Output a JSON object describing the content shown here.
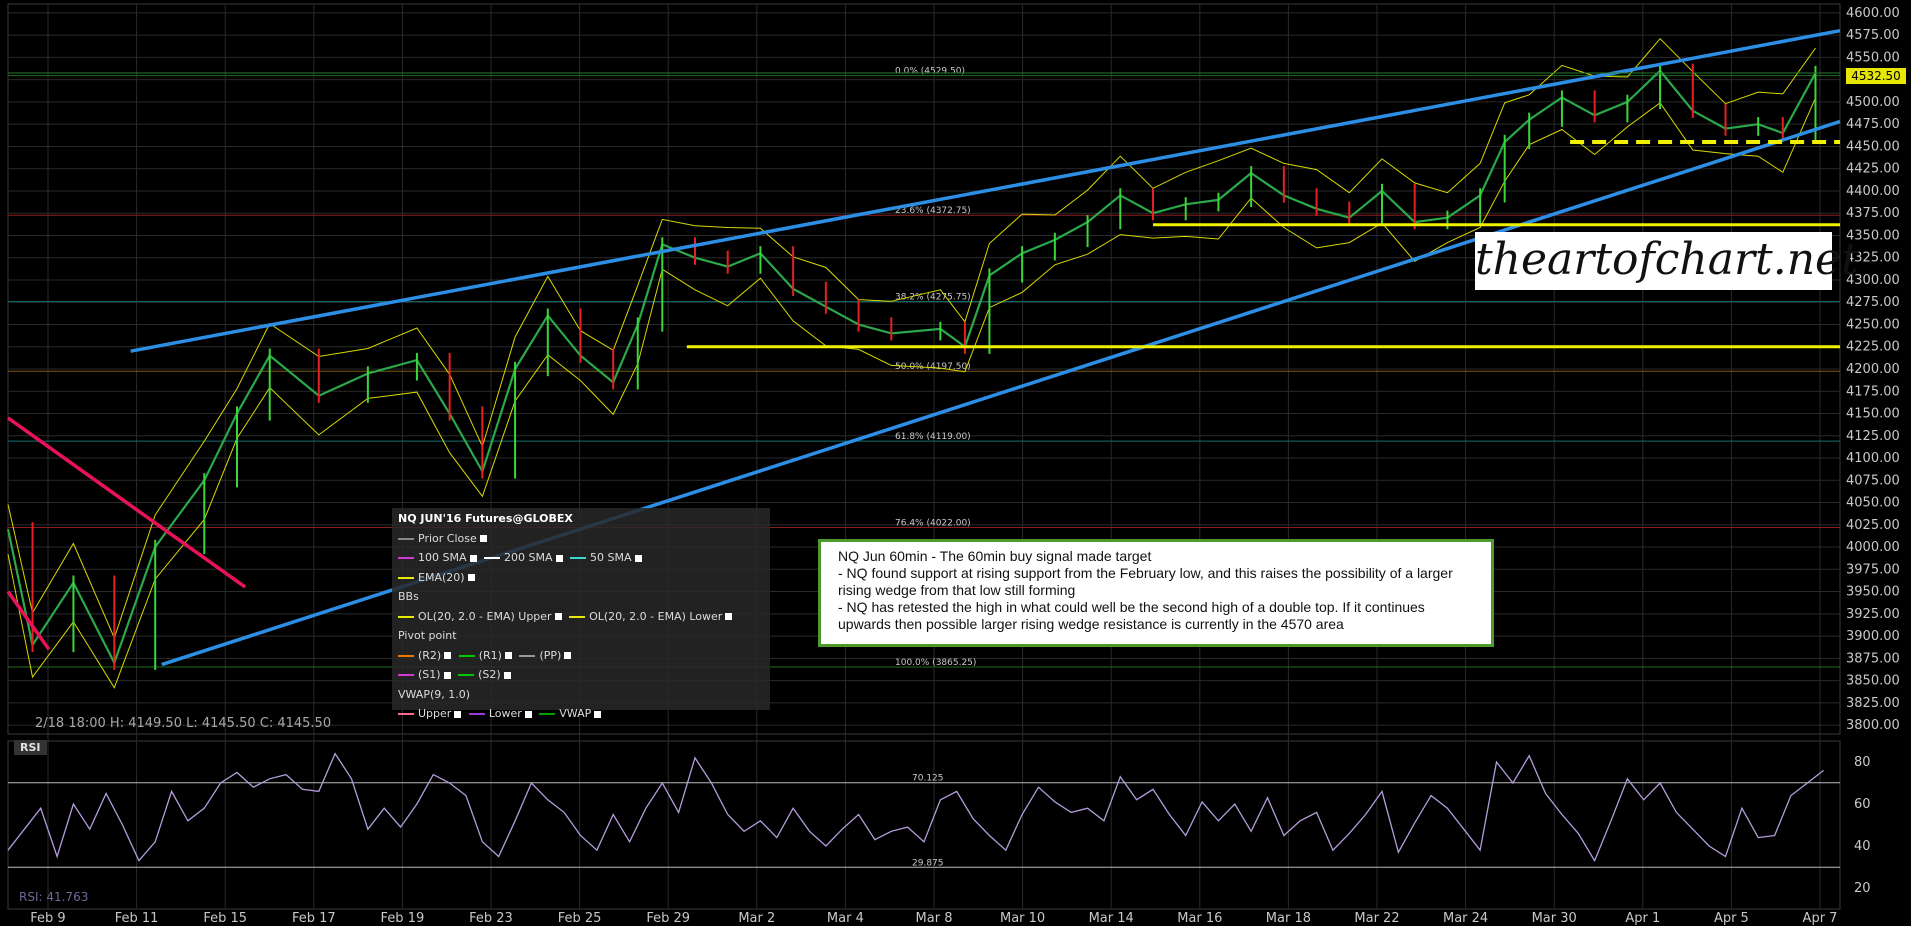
{
  "chart_data": [
    {
      "type": "line",
      "instrument": "NQ JUN'16 Futures@GLOBEX",
      "interval": "60min",
      "y_ticks": [
        4600,
        4575,
        4550,
        4525,
        4500,
        4475,
        4450,
        4425,
        4400,
        4375,
        4350,
        4325,
        4300,
        4275,
        4250,
        4225,
        4200,
        4175,
        4150,
        4125,
        4100,
        4075,
        4050,
        4025,
        4000,
        3975,
        3950,
        3925,
        3900,
        3875,
        3850,
        3825,
        3800
      ],
      "ylim": [
        3790,
        4610
      ],
      "x_ticks": [
        "Feb 9",
        "Feb 11",
        "Feb 15",
        "Feb 17",
        "Feb 19",
        "Feb 23",
        "Feb 25",
        "Feb 29",
        "Mar 2",
        "Mar 4",
        "Mar 8",
        "Mar 10",
        "Mar 14",
        "Mar 16",
        "Mar 18",
        "Mar 22",
        "Mar 24",
        "Mar 30",
        "Apr 1",
        "Apr 5",
        "Apr 7"
      ],
      "last_price": "4532.50",
      "price_path": [
        [
          0,
          4020
        ],
        [
          1.5,
          3890
        ],
        [
          4,
          3960
        ],
        [
          6.5,
          3870
        ],
        [
          9,
          4000
        ],
        [
          12,
          4075
        ],
        [
          14,
          4150
        ],
        [
          16,
          4215
        ],
        [
          19,
          4170
        ],
        [
          22,
          4195
        ],
        [
          25,
          4210
        ],
        [
          27,
          4150
        ],
        [
          29,
          4085
        ],
        [
          31,
          4200
        ],
        [
          33,
          4260
        ],
        [
          35,
          4215
        ],
        [
          37,
          4185
        ],
        [
          38.5,
          4250
        ],
        [
          40,
          4340
        ],
        [
          42,
          4325
        ],
        [
          44,
          4315
        ],
        [
          46,
          4330
        ],
        [
          48,
          4290
        ],
        [
          50,
          4270
        ],
        [
          52,
          4250
        ],
        [
          54,
          4240
        ],
        [
          57,
          4245
        ],
        [
          58.5,
          4225
        ],
        [
          60,
          4305
        ],
        [
          62,
          4330
        ],
        [
          64,
          4345
        ],
        [
          66,
          4365
        ],
        [
          68,
          4395
        ],
        [
          70,
          4375
        ],
        [
          72,
          4385
        ],
        [
          74,
          4390
        ],
        [
          76,
          4420
        ],
        [
          78,
          4395
        ],
        [
          80,
          4380
        ],
        [
          82,
          4370
        ],
        [
          84,
          4400
        ],
        [
          86,
          4365
        ],
        [
          88,
          4370
        ],
        [
          90,
          4395
        ],
        [
          91.5,
          4455
        ],
        [
          93,
          4480
        ],
        [
          95,
          4505
        ],
        [
          97,
          4485
        ],
        [
          99,
          4500
        ],
        [
          101,
          4535
        ],
        [
          103,
          4490
        ],
        [
          105,
          4470
        ],
        [
          107,
          4475
        ],
        [
          108.5,
          4465
        ],
        [
          110.5,
          4532.5
        ]
      ],
      "fib_levels": [
        {
          "label": "0.0% (4529.50)",
          "value": 4529.5,
          "color": "#1e6e1e"
        },
        {
          "label": "23.6% (4372.75)",
          "value": 4372.75,
          "color": "#8a1e1e"
        },
        {
          "label": "38.2% (4275.75)",
          "value": 4275.75,
          "color": "#127070"
        },
        {
          "label": "50.0% (4197.50)",
          "value": 4197.5,
          "color": "#7a5a14"
        },
        {
          "label": "61.8% (4119.00)",
          "value": 4119.0,
          "color": "#127070"
        },
        {
          "label": "76.4% (4022.00)",
          "value": 4022.0,
          "color": "#8a1e1e"
        },
        {
          "label": "100.0% (3865.25)",
          "value": 3865.25,
          "color": "#1e6e1e"
        }
      ],
      "trendlines": [
        {
          "kind": "wedge-resistance",
          "color": "#2d8ee6",
          "from": [
            7.5,
            4220
          ],
          "to": [
            112,
            4580
          ]
        },
        {
          "kind": "wedge-support",
          "color": "#2d8ee6",
          "from": [
            9.4,
            3868
          ],
          "to": [
            112,
            4478
          ]
        },
        {
          "kind": "downtrend",
          "color": "#e8125a",
          "from": [
            0,
            4145
          ],
          "to": [
            14.5,
            3955
          ]
        },
        {
          "kind": "downtrend",
          "color": "#e8125a",
          "from": [
            0,
            3950
          ],
          "to": [
            2.5,
            3885
          ]
        },
        {
          "kind": "support",
          "color": "#f0f000",
          "from": [
            41.5,
            4225
          ],
          "to": [
            112,
            4225
          ]
        },
        {
          "kind": "support",
          "color": "#f0f000",
          "from": [
            70,
            4362
          ],
          "to": [
            112,
            4362
          ]
        },
        {
          "kind": "support-dashed",
          "color": "#f0f000",
          "from": [
            95.5,
            4455
          ],
          "to": [
            112,
            4455
          ]
        }
      ]
    },
    {
      "type": "line",
      "indicator": "RSI",
      "value_label": "RSI: 41.763",
      "y_ticks": [
        80,
        60,
        40,
        20
      ],
      "ylim": [
        10,
        90
      ],
      "levels": [
        {
          "label": "70.125",
          "value": 70.125
        },
        {
          "label": "29.875",
          "value": 29.875
        }
      ],
      "series": [
        [
          0,
          38
        ],
        [
          2,
          58
        ],
        [
          3,
          35
        ],
        [
          4,
          60
        ],
        [
          5,
          48
        ],
        [
          6,
          65
        ],
        [
          7,
          50
        ],
        [
          8,
          33
        ],
        [
          9,
          42
        ],
        [
          10,
          66
        ],
        [
          11,
          52
        ],
        [
          12,
          58
        ],
        [
          13,
          70
        ],
        [
          14,
          75
        ],
        [
          15,
          68
        ],
        [
          16,
          72
        ],
        [
          17,
          74
        ],
        [
          18,
          67
        ],
        [
          19,
          66
        ],
        [
          20,
          84
        ],
        [
          21,
          72
        ],
        [
          22,
          48
        ],
        [
          23,
          58
        ],
        [
          24,
          49
        ],
        [
          25,
          60
        ],
        [
          26,
          74
        ],
        [
          27,
          70
        ],
        [
          28,
          64
        ],
        [
          29,
          42
        ],
        [
          30,
          35
        ],
        [
          31,
          52
        ],
        [
          32,
          70
        ],
        [
          33,
          62
        ],
        [
          34,
          56
        ],
        [
          35,
          45
        ],
        [
          36,
          38
        ],
        [
          37,
          55
        ],
        [
          38,
          42
        ],
        [
          39,
          58
        ],
        [
          40,
          70
        ],
        [
          41,
          56
        ],
        [
          42,
          82
        ],
        [
          43,
          70
        ],
        [
          44,
          55
        ],
        [
          45,
          47
        ],
        [
          46,
          52
        ],
        [
          47,
          44
        ],
        [
          48,
          58
        ],
        [
          49,
          47
        ],
        [
          50,
          40
        ],
        [
          51,
          48
        ],
        [
          52,
          55
        ],
        [
          53,
          43
        ],
        [
          54,
          47
        ],
        [
          55,
          49
        ],
        [
          56,
          42
        ],
        [
          57,
          62
        ],
        [
          58,
          66
        ],
        [
          59,
          53
        ],
        [
          60,
          45
        ],
        [
          61,
          38
        ],
        [
          62,
          55
        ],
        [
          63,
          68
        ],
        [
          64,
          61
        ],
        [
          65,
          56
        ],
        [
          66,
          58
        ],
        [
          67,
          52
        ],
        [
          68,
          73
        ],
        [
          69,
          62
        ],
        [
          70,
          67
        ],
        [
          71,
          55
        ],
        [
          72,
          45
        ],
        [
          73,
          61
        ],
        [
          74,
          52
        ],
        [
          75,
          60
        ],
        [
          76,
          47
        ],
        [
          77,
          63
        ],
        [
          78,
          45
        ],
        [
          79,
          52
        ],
        [
          80,
          56
        ],
        [
          81,
          38
        ],
        [
          82,
          46
        ],
        [
          83,
          55
        ],
        [
          84,
          66
        ],
        [
          85,
          37
        ],
        [
          86,
          51
        ],
        [
          87,
          64
        ],
        [
          88,
          58
        ],
        [
          89,
          48
        ],
        [
          90,
          38
        ],
        [
          91,
          80
        ],
        [
          92,
          70
        ],
        [
          93,
          83
        ],
        [
          94,
          65
        ],
        [
          95,
          55
        ],
        [
          96,
          46
        ],
        [
          97,
          33
        ],
        [
          98,
          52
        ],
        [
          99,
          72
        ],
        [
          100,
          62
        ],
        [
          101,
          70
        ],
        [
          102,
          56
        ],
        [
          103,
          48
        ],
        [
          104,
          40
        ],
        [
          105,
          35
        ],
        [
          106,
          58
        ],
        [
          107,
          44
        ],
        [
          108,
          45
        ],
        [
          109,
          64
        ],
        [
          110,
          70
        ],
        [
          111,
          76
        ]
      ]
    }
  ],
  "legend": {
    "title": "NQ JUN'16 Futures@GLOBEX",
    "items": [
      {
        "label": "Prior Close",
        "color": "#888888"
      },
      {
        "label": "100 SMA",
        "color": "#d63ad6"
      },
      {
        "label": "200 SMA",
        "color": "#ffffff"
      },
      {
        "label": "50 SMA",
        "color": "#3ad6d6"
      },
      {
        "label": "EMA(20)",
        "color": "#e8e800"
      },
      {
        "label": "BBs",
        "color": ""
      },
      {
        "label": "OL(20, 2.0 - EMA) Upper",
        "color": "#e8e800"
      },
      {
        "label": "OL(20, 2.0 - EMA) Lower",
        "color": "#e8e800"
      },
      {
        "label": "Pivot point",
        "color": ""
      },
      {
        "label": "(R2)",
        "color": "#e87a00"
      },
      {
        "label": "(R1)",
        "color": "#00c800"
      },
      {
        "label": "(PP)",
        "color": "#999999"
      },
      {
        "label": "(S1)",
        "color": "#d63ad6"
      },
      {
        "label": "(S2)",
        "color": "#00c800"
      },
      {
        "label": "VWAP(9, 1.0)",
        "color": ""
      },
      {
        "label": "Upper",
        "color": "#ff6a8a"
      },
      {
        "label": "Lower",
        "color": "#9a3ad6"
      },
      {
        "label": "VWAP",
        "color": "#00a000"
      }
    ]
  },
  "ohlc": "2/18 18:00     H: 4149.50   L: 4145.50   C: 4145.50",
  "rsi_label": "RSI",
  "annotation": {
    "lines": [
      "NQ Jun 60min - The 60min buy signal made target",
      "- NQ found support at rising support from the February low, and this raises the possibility of a larger rising wedge from that low still forming",
      "- NQ has retested the high in what could well be the second high of a double top. If it continues upwards then possible larger rising wedge resistance is currently in the 4570 area"
    ]
  },
  "watermark": "theartofchart.net",
  "colors": {
    "background": "#000000",
    "grid": "#2a2a2a",
    "price": "#e8e800",
    "rsi": "#b39ddb",
    "wedge": "#2d8ee6",
    "downtrend": "#e8125a",
    "support": "#f0f000"
  }
}
